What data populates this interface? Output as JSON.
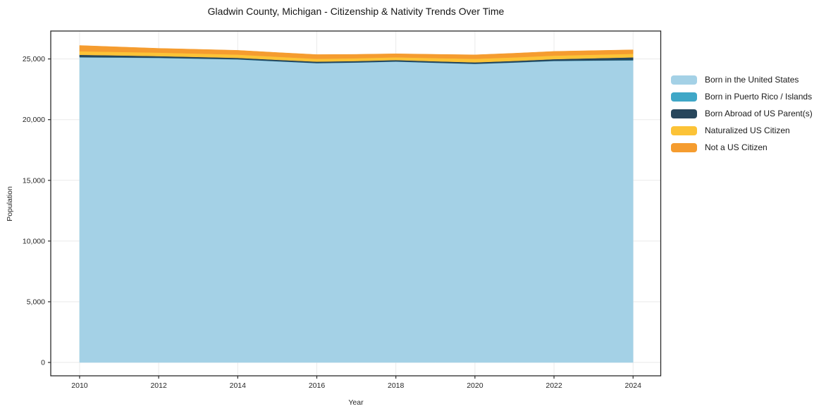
{
  "title": "Gladwin County, Michigan - Citizenship & Nativity Trends Over Time",
  "chart_data": {
    "type": "area",
    "stacked": true,
    "title": "Gladwin County, Michigan - Citizenship & Nativity Trends Over Time",
    "xlabel": "Year",
    "ylabel": "Population",
    "grid": true,
    "legend_position": "right-outside",
    "x": [
      2010,
      2011,
      2012,
      2013,
      2014,
      2015,
      2016,
      2017,
      2018,
      2019,
      2020,
      2021,
      2022,
      2023,
      2024
    ],
    "series": [
      {
        "name": "Born in the United States",
        "color": "#a4d1e6",
        "values": [
          25130,
          25110,
          25080,
          25020,
          24960,
          24800,
          24650,
          24700,
          24780,
          24680,
          24590,
          24700,
          24830,
          24860,
          24880
        ]
      },
      {
        "name": "Born in Puerto Rico / Islands",
        "color": "#3fa7c7",
        "values": [
          20,
          20,
          18,
          18,
          16,
          15,
          15,
          14,
          14,
          15,
          15,
          16,
          18,
          20,
          22
        ]
      },
      {
        "name": "Born Abroad of US Parent(s)",
        "color": "#27465c",
        "values": [
          190,
          160,
          135,
          125,
          115,
          115,
          115,
          115,
          115,
          115,
          115,
          125,
          135,
          180,
          230
        ]
      },
      {
        "name": "Naturalized US Citizen",
        "color": "#fcc337",
        "values": [
          290,
          290,
          290,
          280,
          270,
          250,
          230,
          230,
          230,
          260,
          290,
          290,
          290,
          290,
          290
        ]
      },
      {
        "name": "Not a US Citizen",
        "color": "#f59c2f",
        "values": [
          480,
          410,
          350,
          350,
          350,
          350,
          350,
          320,
          290,
          310,
          330,
          340,
          350,
          340,
          330
        ]
      }
    ],
    "xticks": [
      2010,
      2012,
      2014,
      2016,
      2018,
      2020,
      2022,
      2024
    ],
    "yticks": [
      0,
      5000,
      10000,
      15000,
      20000,
      25000
    ],
    "ytick_labels": [
      "0",
      "5,000",
      "10,000",
      "15,000",
      "20,000",
      "25,000"
    ],
    "xlim": [
      2009.27,
      2024.7
    ],
    "ylim": [
      -1100,
      27300
    ],
    "colors": {
      "grid": "#eaeaea",
      "spine": "#2a2a2a",
      "tick_text": "#262626"
    }
  }
}
